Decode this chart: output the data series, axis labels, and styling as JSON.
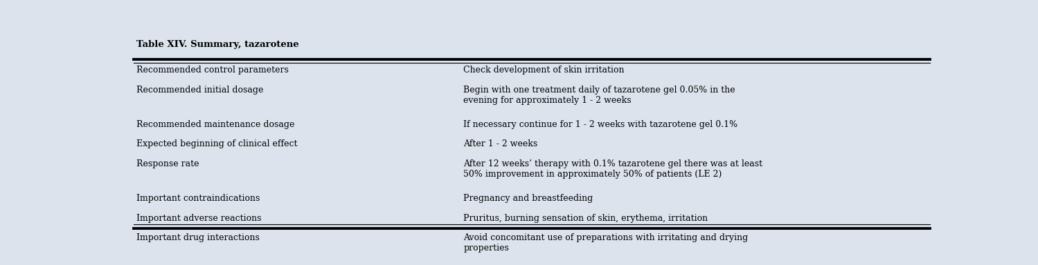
{
  "title": "Table XIV. Summary, tazarotene",
  "background_color": "#dce3ed",
  "title_fontsize": 9.5,
  "body_fontsize": 9.0,
  "rows": [
    {
      "left": "Recommended control parameters",
      "right": "Check development of skin irritation"
    },
    {
      "left": "Recommended initial dosage",
      "right": "Begin with one treatment daily of tazarotene gel 0.05% in the\nevening for approximately 1 - 2 weeks"
    },
    {
      "left": "Recommended maintenance dosage",
      "right": "If necessary continue for 1 - 2 weeks with tazarotene gel 0.1%"
    },
    {
      "left": "Expected beginning of clinical effect",
      "right": "After 1 - 2 weeks"
    },
    {
      "left": "Response rate",
      "right": "After 12 weeks’ therapy with 0.1% tazarotene gel there was at least\n50% improvement in approximately 50% of patients (LE 2)"
    },
    {
      "left": "Important contraindications",
      "right": "Pregnancy and breastfeeding"
    },
    {
      "left": "Important adverse reactions",
      "right": "Pruritus, burning sensation of skin, erythema, irritation"
    },
    {
      "left": "Important drug interactions",
      "right": "Avoid concomitant use of preparations with irritating and drying\nproperties"
    }
  ]
}
